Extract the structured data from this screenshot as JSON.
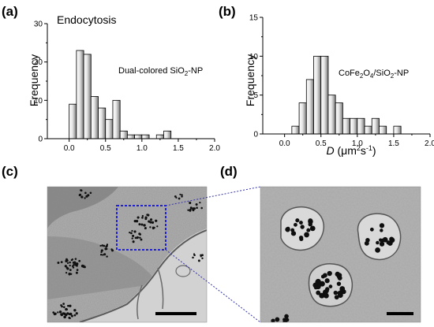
{
  "panels": {
    "a": {
      "label": "(a)"
    },
    "b": {
      "label": "(b)"
    },
    "c": {
      "label": "(c)"
    },
    "d": {
      "label": "(d)"
    }
  },
  "annotations": {
    "a_sample": "Dual-colored SiO",
    "a_sample_sub": "2",
    "a_sample_tail": "-NP",
    "b_sample_1": "CoFe",
    "b_sample_sub1": "2",
    "b_sample_2": "O",
    "b_sample_sub2": "4",
    "b_sample_3": "/SiO",
    "b_sample_sub3": "2",
    "b_sample_4": "-NP",
    "b_xlabel_var": "D",
    "b_xlabel_open": " (",
    "b_xlabel_mu": "μm",
    "b_xlabel_sup1": "2",
    "b_xlabel_s": "s",
    "b_xlabel_sup2": "-1",
    "b_xlabel_close": ")"
  },
  "micrographs": {
    "c": {
      "description_hidden": "",
      "zoom_box_color": "#1a1ad6"
    },
    "d": {}
  },
  "colors": {
    "bar_light": "#f2f2f2",
    "bar_dark": "#8a8a8a",
    "bar_stroke": "#000000",
    "zoom_box": "#2222cc"
  },
  "chart_data": [
    {
      "type": "bar",
      "title": "Endocytosis",
      "xlabel": "",
      "ylabel": "Frequency",
      "xlim": [
        -0.3,
        2.0
      ],
      "ylim": [
        0,
        30
      ],
      "xticks": [
        "0.0",
        "0.5",
        "1.0",
        "1.5",
        "2.0"
      ],
      "xtick_values": [
        0.0,
        0.5,
        1.0,
        1.5,
        2.0
      ],
      "yticks": [
        "0",
        "10",
        "20",
        "30"
      ],
      "ytick_values": [
        0,
        10,
        20,
        30
      ],
      "bin_width": 0.1,
      "bins": [
        0.05,
        0.15,
        0.25,
        0.35,
        0.45,
        0.55,
        0.65,
        0.75,
        0.85,
        0.95,
        1.05,
        1.15,
        1.25,
        1.35
      ],
      "values": [
        9,
        23,
        22,
        11,
        8,
        5,
        10,
        2,
        1,
        1,
        1,
        0,
        1,
        2
      ]
    },
    {
      "type": "bar",
      "title": "",
      "xlabel": "D (μm²s⁻¹)",
      "ylabel": "Frequency",
      "xlim": [
        -0.3,
        2.0
      ],
      "ylim": [
        0,
        15
      ],
      "xticks": [
        "0.0",
        "0.5",
        "1.0",
        "1.5",
        "2.0"
      ],
      "xtick_values": [
        0.0,
        0.5,
        1.0,
        1.5,
        2.0
      ],
      "yticks": [
        "0",
        "5",
        "10",
        "15"
      ],
      "ytick_values": [
        0,
        5,
        10,
        15
      ],
      "bin_width": 0.1,
      "bins": [
        0.15,
        0.25,
        0.35,
        0.45,
        0.55,
        0.65,
        0.75,
        0.85,
        0.95,
        1.05,
        1.15,
        1.25,
        1.35,
        1.45,
        1.55
      ],
      "values": [
        1,
        4,
        7,
        10,
        10,
        5,
        4,
        2,
        2,
        2,
        1,
        2,
        1,
        0,
        1
      ]
    }
  ]
}
